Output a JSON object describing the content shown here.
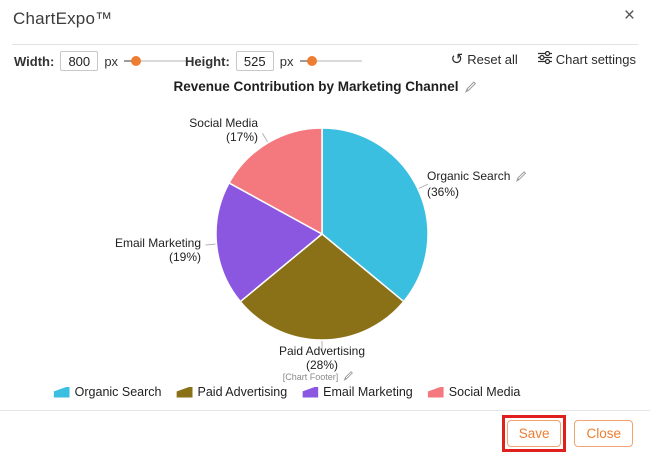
{
  "header": {
    "app_title": "ChartExpo™",
    "close_glyph": "×"
  },
  "toolbar": {
    "width": {
      "label": "Width:",
      "value": "800",
      "unit": "px"
    },
    "height": {
      "label": "Height:",
      "value": "525",
      "unit": "px"
    },
    "reset_glyph": "↺",
    "reset_label": "Reset all",
    "chart_settings_label": "Chart settings"
  },
  "chart": {
    "title": "Revenue Contribution by Marketing Channel",
    "footer_placeholder": "[Chart Footer]"
  },
  "chart_data": {
    "type": "pie",
    "title": "Revenue Contribution by Marketing Channel",
    "categories": [
      "Organic Search",
      "Paid Advertising",
      "Email Marketing",
      "Social Media"
    ],
    "values": [
      36,
      28,
      19,
      17
    ],
    "unit": "%",
    "start_angle_deg": 0,
    "direction": "clockwise",
    "legend_position": "bottom",
    "slices": [
      {
        "name": "Organic Search",
        "value": 36,
        "pct_label": "(36%)",
        "color": "#3bbfe0"
      },
      {
        "name": "Paid Advertising",
        "value": 28,
        "pct_label": "(28%)",
        "color": "#8a7016"
      },
      {
        "name": "Email Marketing",
        "value": 19,
        "pct_label": "(19%)",
        "color": "#8b57e0"
      },
      {
        "name": "Social Media",
        "value": 17,
        "pct_label": "(17%)",
        "color": "#f4797f"
      }
    ]
  },
  "legend": {
    "items": [
      {
        "label": "Organic Search",
        "color": "#3bbfe0"
      },
      {
        "label": "Paid Advertising",
        "color": "#8a7016"
      },
      {
        "label": "Email Marketing",
        "color": "#8b57e0"
      },
      {
        "label": "Social Media",
        "color": "#f4797f"
      }
    ]
  },
  "footer": {
    "save_label": "Save",
    "close_label": "Close"
  },
  "colors": {
    "accent_orange": "#ed7d31",
    "annotation_red": "#e0201c",
    "leader_line_gray": "#b3b3b3"
  }
}
